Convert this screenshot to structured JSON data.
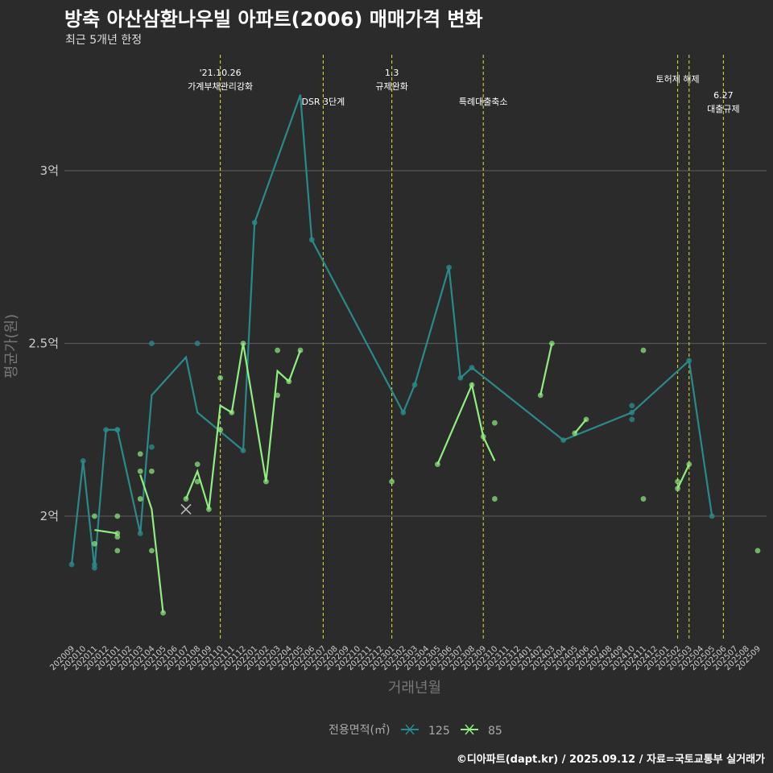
{
  "title": "방축 아산삼환나우빌 아파트(2006) 매매가격 변화",
  "subtitle": "최근 5개년 한정",
  "caption": "©디아파트(dapt.kr) / 2025.09.12 / 자료=국토교통부 실거래가",
  "chart_data": {
    "type": "line",
    "title": "방축 아산삼환나우빌 아파트(2006) 매매가격 변화",
    "xlabel": "거래년월",
    "ylabel": "평균가(원)",
    "ylim": [
      1.65,
      3.4
    ],
    "y_ticks": [
      {
        "value": 2.0,
        "label": "2억"
      },
      {
        "value": 2.5,
        "label": "2.5억"
      },
      {
        "value": 3.0,
        "label": "3억"
      }
    ],
    "x_categories": [
      "202009",
      "202010",
      "202011",
      "202012",
      "202101",
      "202102",
      "202103",
      "202104",
      "202105",
      "202106",
      "202107",
      "202108",
      "202109",
      "202110",
      "202111",
      "202112",
      "202201",
      "202202",
      "202203",
      "202204",
      "202205",
      "202206",
      "202207",
      "202208",
      "202209",
      "202210",
      "202211",
      "202212",
      "202301",
      "202302",
      "202303",
      "202304",
      "202305",
      "202306",
      "202307",
      "202308",
      "202309",
      "202310",
      "202311",
      "202312",
      "202401",
      "202402",
      "202403",
      "202404",
      "202405",
      "202406",
      "202407",
      "202408",
      "202409",
      "202410",
      "202411",
      "202412",
      "202501",
      "202502",
      "202503",
      "202504",
      "202505",
      "202506",
      "202507",
      "202508",
      "202509"
    ],
    "legend": {
      "title": "전용면적(㎡)",
      "position": "bottom"
    },
    "series": [
      {
        "name": "125",
        "color": "#2a8a8a",
        "line": [
          [
            "202009",
            1.86
          ],
          [
            "202010",
            2.16
          ],
          [
            "202011",
            1.85
          ],
          [
            "202012",
            2.25
          ],
          [
            "202101",
            2.25
          ],
          [
            "202103",
            1.95
          ],
          [
            "202104",
            2.35
          ],
          [
            "202107",
            2.46
          ],
          [
            "202108",
            2.3
          ],
          [
            "202112",
            2.19
          ],
          [
            "202201",
            2.85
          ],
          [
            "202205",
            3.22
          ],
          [
            "202206",
            2.8
          ],
          [
            "202302",
            2.3
          ],
          [
            "202303",
            2.38
          ],
          [
            "202306",
            2.72
          ],
          [
            "202307",
            2.4
          ],
          [
            "202308",
            2.43
          ],
          [
            "202404",
            2.22
          ],
          [
            "202410",
            2.3
          ],
          [
            "202503",
            2.45
          ],
          [
            "202505",
            2.0
          ]
        ],
        "points": [
          [
            "202009",
            1.86
          ],
          [
            "202010",
            2.16
          ],
          [
            "202011",
            1.86
          ],
          [
            "202011",
            1.85
          ],
          [
            "202012",
            2.25
          ],
          [
            "202101",
            2.25
          ],
          [
            "202101",
            2.25
          ],
          [
            "202103",
            1.95
          ],
          [
            "202104",
            2.5
          ],
          [
            "202104",
            2.2
          ],
          [
            "202108",
            2.5
          ],
          [
            "202112",
            2.19
          ],
          [
            "202201",
            2.85
          ],
          [
            "202206",
            2.8
          ],
          [
            "202302",
            2.3
          ],
          [
            "202303",
            2.38
          ],
          [
            "202306",
            2.72
          ],
          [
            "202307",
            2.4
          ],
          [
            "202308",
            2.43
          ],
          [
            "202404",
            2.22
          ],
          [
            "202410",
            2.32
          ],
          [
            "202410",
            2.3
          ],
          [
            "202410",
            2.28
          ],
          [
            "202503",
            2.45
          ],
          [
            "202505",
            2.0
          ]
        ]
      },
      {
        "name": "85",
        "color": "#90ee80",
        "line_segments": [
          [
            [
              "202011",
              1.96
            ],
            [
              "202101",
              1.95
            ]
          ],
          [
            [
              "202103",
              2.12
            ],
            [
              "202104",
              2.02
            ],
            [
              "202105",
              1.72
            ]
          ],
          [
            [
              "202107",
              2.05
            ],
            [
              "202108",
              2.13
            ],
            [
              "202109",
              2.02
            ],
            [
              "202110",
              2.32
            ],
            [
              "202111",
              2.3
            ],
            [
              "202112",
              2.5
            ],
            [
              "202202",
              2.1
            ],
            [
              "202203",
              2.42
            ],
            [
              "202204",
              2.39
            ],
            [
              "202205",
              2.48
            ]
          ],
          [
            [
              "202305",
              2.15
            ],
            [
              "202308",
              2.38
            ],
            [
              "202309",
              2.23
            ],
            [
              "202310",
              2.16
            ]
          ],
          [
            [
              "202402",
              2.35
            ],
            [
              "202403",
              2.5
            ]
          ],
          [
            [
              "202405",
              2.24
            ],
            [
              "202406",
              2.28
            ]
          ],
          [
            [
              "202502",
              2.08
            ],
            [
              "202503",
              2.15
            ]
          ]
        ],
        "points": [
          [
            "202011",
            2.0
          ],
          [
            "202011",
            1.92
          ],
          [
            "202101",
            2.0
          ],
          [
            "202101",
            1.95
          ],
          [
            "202101",
            1.94
          ],
          [
            "202101",
            1.9
          ],
          [
            "202103",
            2.18
          ],
          [
            "202103",
            2.13
          ],
          [
            "202103",
            2.05
          ],
          [
            "202104",
            2.13
          ],
          [
            "202104",
            1.9
          ],
          [
            "202105",
            1.72
          ],
          [
            "202107",
            2.05
          ],
          [
            "202108",
            2.15
          ],
          [
            "202108",
            2.1
          ],
          [
            "202109",
            2.02
          ],
          [
            "202110",
            2.4
          ],
          [
            "202110",
            2.25
          ],
          [
            "202111",
            2.3
          ],
          [
            "202112",
            2.5
          ],
          [
            "202202",
            2.1
          ],
          [
            "202203",
            2.48
          ],
          [
            "202203",
            2.35
          ],
          [
            "202204",
            2.39
          ],
          [
            "202205",
            2.48
          ],
          [
            "202301",
            2.1
          ],
          [
            "202305",
            2.15
          ],
          [
            "202308",
            2.38
          ],
          [
            "202309",
            2.23
          ],
          [
            "202310",
            2.27
          ],
          [
            "202310",
            2.05
          ],
          [
            "202402",
            2.35
          ],
          [
            "202403",
            2.5
          ],
          [
            "202405",
            2.24
          ],
          [
            "202406",
            2.28
          ],
          [
            "202411",
            2.48
          ],
          [
            "202411",
            2.05
          ],
          [
            "202502",
            2.08
          ],
          [
            "202502",
            2.1
          ],
          [
            "202503",
            2.15
          ],
          [
            "202509",
            1.9
          ]
        ]
      }
    ],
    "annotations": [
      {
        "x": "202110",
        "lines": [
          "'21.10.26",
          "가계부채관리강화"
        ],
        "row": 0
      },
      {
        "x": "202207",
        "lines": [
          "DSR 3단계"
        ],
        "row": 2
      },
      {
        "x": "202301",
        "lines": [
          "1.3",
          "규제완화"
        ],
        "row": 0
      },
      {
        "x": "202309",
        "lines": [
          "특례대출축소"
        ],
        "row": 2
      },
      {
        "x": "202502",
        "lines": [
          "토허제 해제"
        ],
        "row": 1
      },
      {
        "x": "202503",
        "lines": [],
        "row": 1
      },
      {
        "x": "202506",
        "lines": [
          "6.27",
          "대출규제"
        ],
        "row": 3
      }
    ]
  }
}
